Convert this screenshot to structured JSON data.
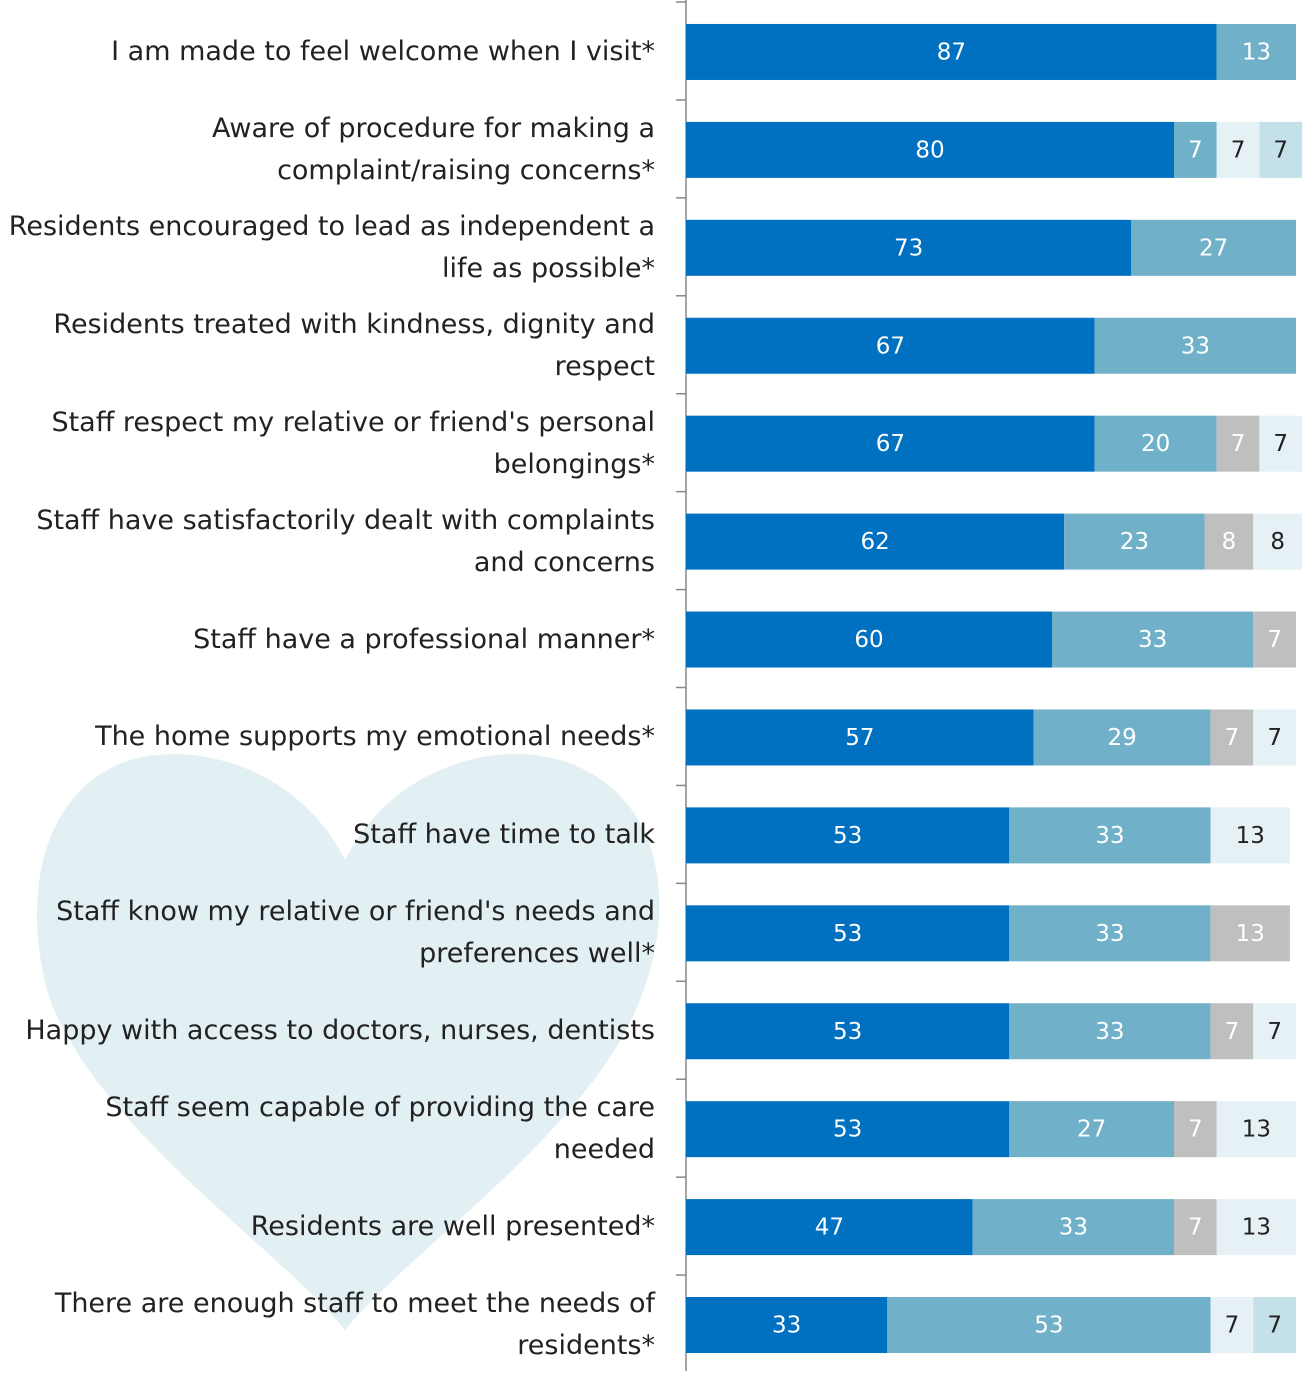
{
  "chart_data": {
    "type": "stacked-bar-horizontal",
    "categories": [
      "I am made to feel welcome when I visit*",
      "Aware of procedure for making a complaint/raising concerns*",
      "Residents encouraged to lead as independent a life as possible*",
      "Residents treated with kindness, dignity and respect",
      "Staff respect my relative or friend's personal belongings*",
      "Staff have satisfactorily dealt with complaints and concerns",
      "Staff have a professional manner*",
      "The home supports my emotional needs*",
      "Staff have time to talk",
      "Staff know my relative or friend's needs and preferences well*",
      "Happy with access to doctors, nurses, dentists",
      "Staff seem capable of providing the care needed",
      "Residents are well presented*",
      "There are enough staff to meet the needs of residents*"
    ],
    "series": [
      {
        "color": "#0070c0",
        "label_color": "#ffffff",
        "values": [
          87,
          80,
          73,
          67,
          67,
          62,
          60,
          57,
          53,
          53,
          53,
          53,
          47,
          33
        ]
      },
      {
        "color": "#70b0c8",
        "label_color": "#ffffff",
        "values": [
          13,
          7,
          27,
          33,
          20,
          23,
          33,
          29,
          33,
          33,
          33,
          27,
          33,
          53
        ]
      },
      {
        "color": "#bfbfbf",
        "label_color": "#ffffff",
        "values": [
          null,
          null,
          null,
          null,
          7,
          8,
          7,
          7,
          null,
          13,
          7,
          7,
          7,
          null
        ]
      },
      {
        "color": "#e6f1f5",
        "label_color": "#222222",
        "values": [
          null,
          7,
          null,
          null,
          7,
          8,
          null,
          7,
          13,
          null,
          7,
          13,
          13,
          7
        ]
      },
      {
        "color": "#c4e0e8",
        "label_color": "#222222",
        "values": [
          null,
          7,
          null,
          null,
          null,
          null,
          null,
          null,
          null,
          null,
          null,
          null,
          null,
          7
        ]
      }
    ],
    "xlim": [
      0,
      100
    ]
  }
}
